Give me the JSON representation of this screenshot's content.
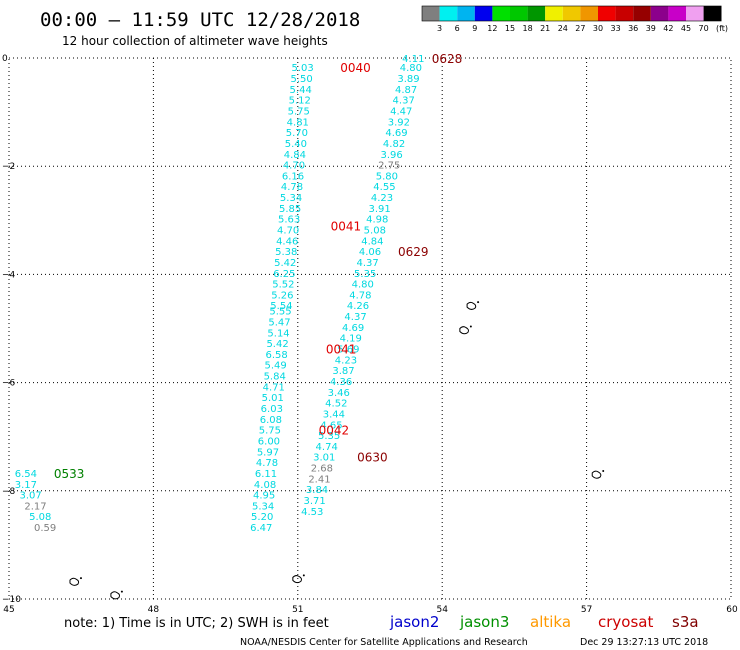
{
  "header": {
    "title": "00:00 – 11:59 UTC 12/28/2018",
    "subtitle": "12 hour collection of altimeter wave heights"
  },
  "colorbar": {
    "unit": "(ft)",
    "ticks": [
      "3",
      "6",
      "9",
      "12",
      "15",
      "18",
      "21",
      "24",
      "27",
      "30",
      "33",
      "36",
      "39",
      "42",
      "45",
      "70"
    ],
    "colors": [
      "#7f7f7f",
      "#00f0f0",
      "#00b4f0",
      "#0000ee",
      "#00e000",
      "#00c800",
      "#009600",
      "#f0f000",
      "#f0c800",
      "#f09600",
      "#f00000",
      "#c80000",
      "#960000",
      "#8c008c",
      "#c800c8",
      "#f0a0f0",
      "#000000"
    ]
  },
  "axes": {
    "x_ticks": [
      "45",
      "48",
      "51",
      "54",
      "57",
      "60"
    ],
    "x_values": [
      45,
      48,
      51,
      54,
      57,
      60
    ],
    "y_ticks": [
      "0",
      "−2",
      "−4",
      "−6",
      "−8",
      "−10"
    ],
    "y_values": [
      0,
      -2,
      -4,
      -6,
      -8,
      -10
    ],
    "xlim": [
      45,
      60
    ],
    "ylim": [
      -10,
      0
    ]
  },
  "map_data": {
    "tracks": [
      {
        "color": "#00d8e0",
        "points": [
          [
            51.1,
            -0.17,
            "5.03"
          ],
          [
            51.08,
            -0.37,
            "5.50"
          ],
          [
            51.06,
            -0.57,
            "5.44"
          ],
          [
            51.04,
            -0.77,
            "5.12"
          ],
          [
            51.02,
            -0.97,
            "5.75"
          ],
          [
            51.0,
            -1.17,
            "4.81"
          ],
          [
            50.98,
            -1.37,
            "5.70"
          ],
          [
            50.96,
            -1.57,
            "5.40"
          ],
          [
            50.94,
            -1.77,
            "4.84"
          ],
          [
            50.92,
            -1.97,
            "4.70"
          ],
          [
            50.9,
            -2.17,
            "6.16"
          ],
          [
            50.88,
            -2.37,
            "4.78"
          ],
          [
            50.86,
            -2.57,
            "5.34"
          ],
          [
            50.84,
            -2.77,
            "5.85"
          ],
          [
            50.82,
            -2.97,
            "5.63"
          ],
          [
            50.8,
            -3.17,
            "4.70"
          ],
          [
            50.78,
            -3.37,
            "4.46"
          ],
          [
            50.76,
            -3.57,
            "5.38"
          ],
          [
            50.74,
            -3.77,
            "5.42"
          ],
          [
            50.72,
            -3.97,
            "6.25"
          ],
          [
            50.7,
            -4.17,
            "5.52"
          ],
          [
            50.68,
            -4.37,
            "5.26"
          ],
          [
            50.66,
            -4.57,
            "5.54"
          ],
          [
            50.64,
            -4.67,
            "5.55"
          ],
          [
            50.62,
            -4.87,
            "5.47"
          ],
          [
            50.6,
            -5.07,
            "5.14"
          ],
          [
            50.58,
            -5.27,
            "5.42"
          ],
          [
            50.56,
            -5.47,
            "6.58"
          ],
          [
            50.54,
            -5.67,
            "5.49"
          ],
          [
            50.52,
            -5.87,
            "5.84"
          ],
          [
            50.5,
            -6.07,
            "4.71"
          ],
          [
            50.48,
            -6.27,
            "5.01"
          ],
          [
            50.46,
            -6.47,
            "6.03"
          ],
          [
            50.44,
            -6.67,
            "6.08"
          ],
          [
            50.42,
            -6.87,
            "5.75"
          ],
          [
            50.4,
            -7.07,
            "6.00"
          ],
          [
            50.38,
            -7.27,
            "5.97"
          ],
          [
            50.36,
            -7.47,
            "4.78"
          ],
          [
            50.34,
            -7.67,
            "6.11"
          ],
          [
            50.32,
            -7.87,
            "4.08"
          ],
          [
            50.3,
            -8.07,
            "4.95"
          ],
          [
            50.28,
            -8.27,
            "5.34"
          ],
          [
            50.26,
            -8.47,
            "5.20"
          ],
          [
            50.24,
            -8.67,
            "6.47"
          ]
        ]
      },
      {
        "color": "#00d8e0",
        "points": [
          [
            53.4,
            -0.0,
            "4.11"
          ],
          [
            53.35,
            -0.17,
            "4.80"
          ],
          [
            53.3,
            -0.37,
            "3.89"
          ],
          [
            53.25,
            -0.57,
            "4.87"
          ],
          [
            53.2,
            -0.77,
            "4.37"
          ],
          [
            53.15,
            -0.97,
            "4.47"
          ],
          [
            53.1,
            -1.17,
            "3.92"
          ],
          [
            53.05,
            -1.37,
            "4.69"
          ],
          [
            53.0,
            -1.57,
            "4.82"
          ],
          [
            52.95,
            -1.77,
            "3.96"
          ],
          [
            52.9,
            -1.97,
            "2.75"
          ],
          [
            52.85,
            -2.17,
            "5.80"
          ],
          [
            52.8,
            -2.37,
            "4.55"
          ],
          [
            52.75,
            -2.57,
            "4.23"
          ],
          [
            52.7,
            -2.77,
            "3.91"
          ],
          [
            52.65,
            -2.97,
            "4.98"
          ],
          [
            52.6,
            -3.17,
            "5.08"
          ],
          [
            52.55,
            -3.37,
            "4.84"
          ],
          [
            52.5,
            -3.57,
            "4.06"
          ],
          [
            52.45,
            -3.77,
            "4.37"
          ],
          [
            52.4,
            -3.97,
            "5.35"
          ],
          [
            52.35,
            -4.17,
            "4.80"
          ],
          [
            52.3,
            -4.37,
            "4.78"
          ],
          [
            52.25,
            -4.57,
            "4.26"
          ],
          [
            52.2,
            -4.77,
            "4.37"
          ],
          [
            52.15,
            -4.97,
            "4.69"
          ],
          [
            52.1,
            -5.17,
            "4.19"
          ],
          [
            52.05,
            -5.37,
            "5.69"
          ],
          [
            52.0,
            -5.57,
            "4.23"
          ],
          [
            51.95,
            -5.77,
            "3.87"
          ],
          [
            51.9,
            -5.97,
            "4.36"
          ],
          [
            51.85,
            -6.17,
            "3.46"
          ],
          [
            51.8,
            -6.37,
            "4.52"
          ],
          [
            51.75,
            -6.57,
            "3.44"
          ],
          [
            51.7,
            -6.77,
            "4.65"
          ],
          [
            51.65,
            -6.97,
            "5.35"
          ],
          [
            51.6,
            -7.17,
            "4.74"
          ],
          [
            51.55,
            -7.37,
            "3.01"
          ],
          [
            51.5,
            -7.57,
            "2.68"
          ],
          [
            51.45,
            -7.77,
            "2.41"
          ],
          [
            51.4,
            -7.97,
            "3.84"
          ],
          [
            51.35,
            -8.17,
            "3.71"
          ],
          [
            51.3,
            -8.37,
            "4.53"
          ]
        ]
      },
      {
        "color": "#00d8e0",
        "points": [
          [
            45.35,
            -7.67,
            "6.54"
          ],
          [
            45.35,
            -7.87,
            "3.17"
          ],
          [
            45.45,
            -8.07,
            "3.07"
          ],
          [
            45.55,
            -8.27,
            "2.17"
          ],
          [
            45.65,
            -8.47,
            "5.08"
          ],
          [
            45.75,
            -8.67,
            "0.59"
          ]
        ]
      }
    ],
    "time_labels": [
      {
        "x": 52.2,
        "y": -0.17,
        "text": "0040",
        "color": "#e00000"
      },
      {
        "x": 54.1,
        "y": 0.0,
        "text": "0628",
        "color": "#8b0000"
      },
      {
        "x": 52.0,
        "y": -3.1,
        "text": "0041",
        "color": "#e00000"
      },
      {
        "x": 53.4,
        "y": -3.57,
        "text": "0629",
        "color": "#8b0000"
      },
      {
        "x": 51.9,
        "y": -5.37,
        "text": "0041",
        "color": "#e00000"
      },
      {
        "x": 51.75,
        "y": -6.87,
        "text": "0042",
        "color": "#e00000"
      },
      {
        "x": 52.55,
        "y": -7.37,
        "text": "0630",
        "color": "#8b0000"
      },
      {
        "x": 46.25,
        "y": -7.67,
        "text": "0533",
        "color": "#008000"
      }
    ],
    "land": [
      {
        "name": "islands-east-1",
        "x": 54.6,
        "y": -4.55
      },
      {
        "name": "islands-east-2",
        "x": 54.45,
        "y": -5.0
      },
      {
        "name": "island-east-3",
        "x": 57.2,
        "y": -7.67
      },
      {
        "name": "island-west-1",
        "x": 46.35,
        "y": -9.65
      },
      {
        "name": "island-west-2",
        "x": 47.2,
        "y": -9.9
      },
      {
        "name": "island-mid",
        "x": 50.98,
        "y": -9.6
      }
    ]
  },
  "legend": {
    "note": "note:  1) Time is in UTC;  2) SWH is in feet",
    "satellites": [
      {
        "name": "jason2",
        "color": "#0000cc"
      },
      {
        "name": "jason3",
        "color": "#009000"
      },
      {
        "name": "altika",
        "color": "#ff9900"
      },
      {
        "name": "cryosat",
        "color": "#cc0000"
      },
      {
        "name": "s3a",
        "color": "#800000"
      }
    ]
  },
  "footer": {
    "credit": "NOAA/NESDIS Center for Satellite Applications and Research",
    "timestamp": "Dec 29 13:27:13 UTC 2018"
  }
}
